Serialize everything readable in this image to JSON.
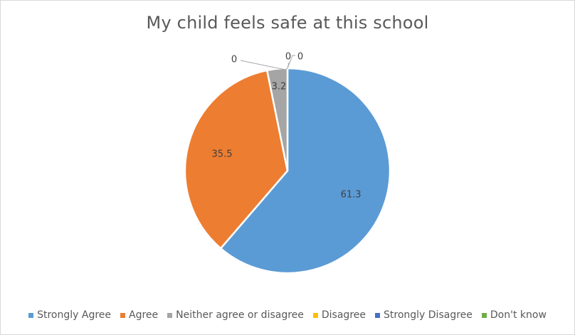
{
  "chart_data": {
    "type": "pie",
    "title": "My child feels safe at this school",
    "categories": [
      "Strongly Agree",
      "Agree",
      "Neither agree or disagree",
      "Disagree",
      "Strongly Disagree",
      "Don't know"
    ],
    "values": [
      61.3,
      35.5,
      3.2,
      0,
      0,
      0
    ],
    "labels": [
      "61.3",
      "35.5",
      "3.2",
      "0",
      "0",
      "0"
    ],
    "colors": [
      "#5b9bd5",
      "#ed7d31",
      "#a5a5a5",
      "#ffc000",
      "#4472c4",
      "#70ad47"
    ],
    "legend_position": "bottom",
    "start_angle": "top, clockwise"
  }
}
